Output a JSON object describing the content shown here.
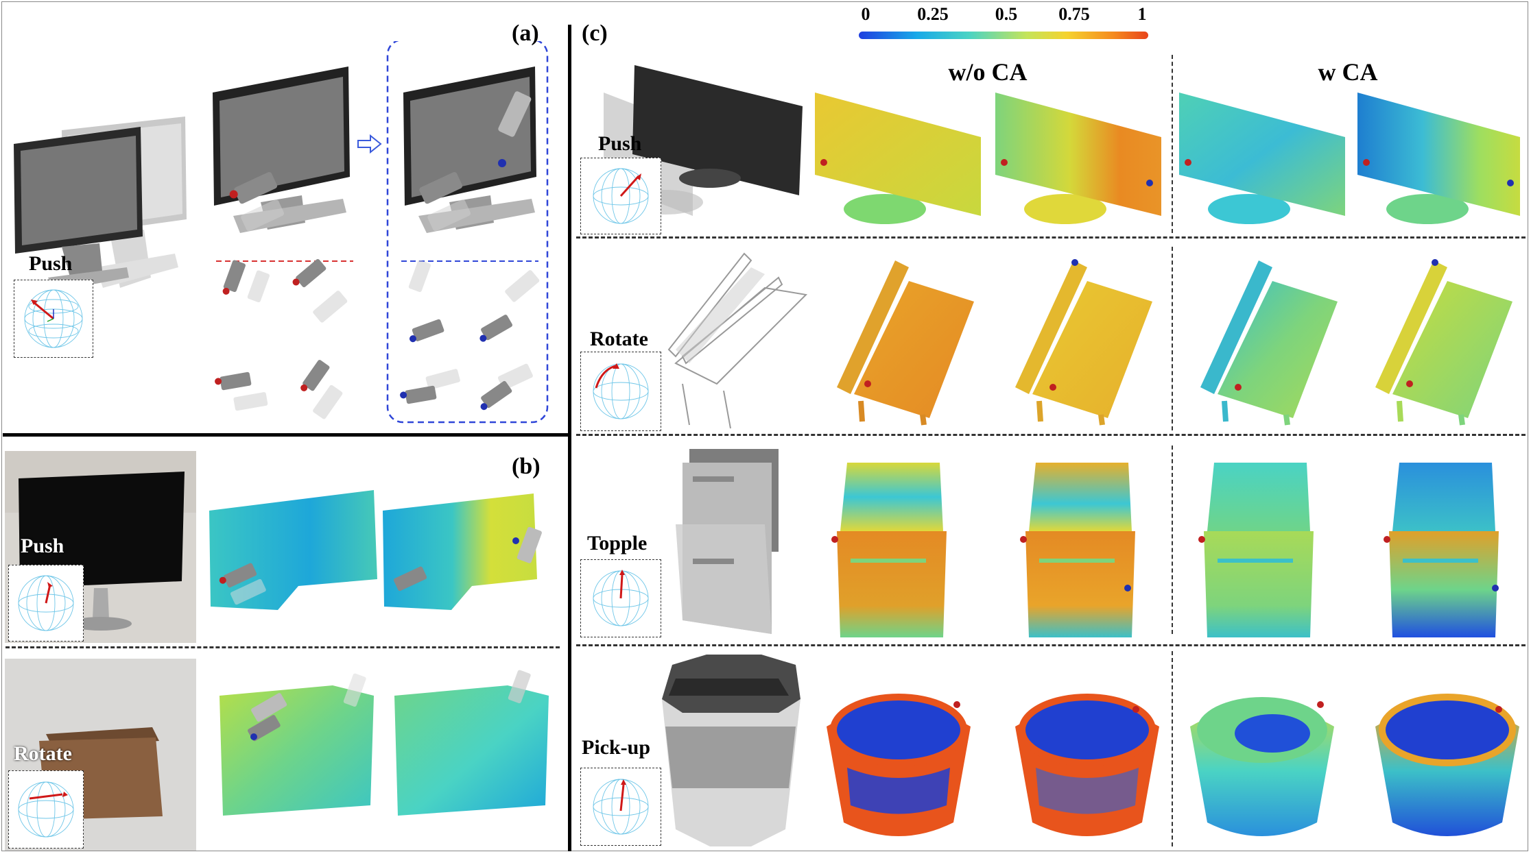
{
  "panels": {
    "a": {
      "tag": "(a)",
      "action_label": "Push"
    },
    "b": {
      "tag": "(b)",
      "rows": [
        {
          "label": "Push"
        },
        {
          "label": "Rotate"
        }
      ]
    },
    "c": {
      "tag": "(c)",
      "colorbar": {
        "ticks": [
          "0",
          "0.25",
          "0.5",
          "0.75",
          "1"
        ],
        "colors": [
          "#1f3fe0",
          "#18a9e8",
          "#4ad3c4",
          "#c4e45a",
          "#f5d22e",
          "#f58a1e",
          "#e8431a"
        ]
      },
      "column_headers": [
        "w/o CA",
        "w CA"
      ],
      "rows": [
        {
          "label": "Push",
          "object": "monitor"
        },
        {
          "label": "Rotate",
          "object": "bench"
        },
        {
          "label": "Topple",
          "object": "cabinet"
        },
        {
          "label": "Pick-up",
          "object": "bucket"
        }
      ]
    }
  }
}
